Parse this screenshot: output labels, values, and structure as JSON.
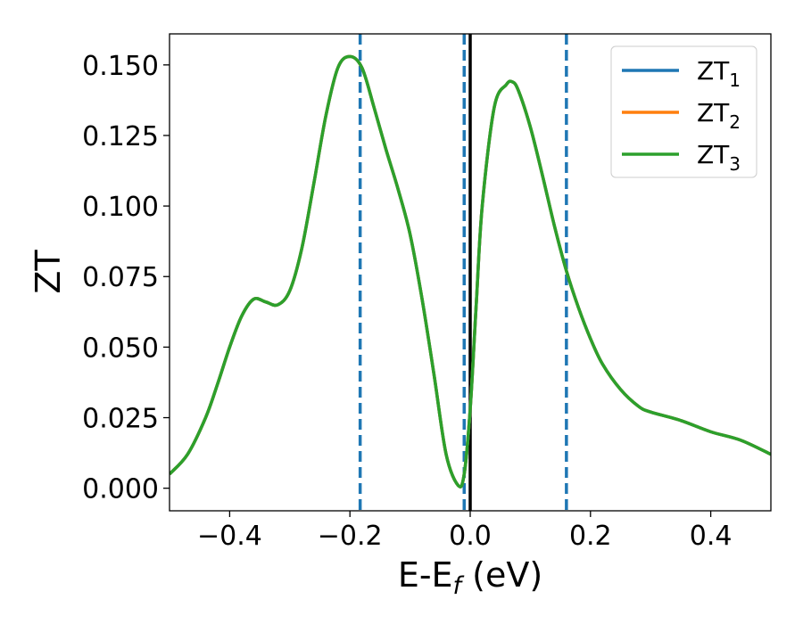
{
  "chart_data": {
    "type": "line",
    "xlabel": "E-E",
    "xlabel_sub": "f",
    "xlabel_unit": " (eV)",
    "ylabel": "ZT",
    "xlim": [
      -0.5,
      0.5
    ],
    "ylim": [
      -0.008,
      0.161
    ],
    "grid": false,
    "legend_position": "top-right",
    "xticks": [
      -0.4,
      -0.2,
      0.0,
      0.2,
      0.4
    ],
    "xtick_labels": [
      "−0.4",
      "−0.2",
      "0.0",
      "0.2",
      "0.4"
    ],
    "yticks": [
      0.0,
      0.025,
      0.05,
      0.075,
      0.1,
      0.125,
      0.15
    ],
    "ytick_labels": [
      "0.000",
      "0.025",
      "0.050",
      "0.075",
      "0.100",
      "0.125",
      "0.150"
    ],
    "series": [
      {
        "name": "ZT",
        "sub": "1",
        "color": "#1f77b4"
      },
      {
        "name": "ZT",
        "sub": "2",
        "color": "#ff7f0e"
      },
      {
        "name": "ZT",
        "sub": "3",
        "color": "#2ca02c"
      }
    ],
    "curve": {
      "color": "#2ca02c",
      "x": [
        -0.5,
        -0.47,
        -0.44,
        -0.42,
        -0.4,
        -0.38,
        -0.36,
        -0.34,
        -0.32,
        -0.3,
        -0.28,
        -0.26,
        -0.24,
        -0.22,
        -0.2,
        -0.18,
        -0.16,
        -0.14,
        -0.12,
        -0.1,
        -0.08,
        -0.06,
        -0.04,
        -0.02,
        -0.01,
        0.0,
        0.01,
        0.02,
        0.04,
        0.06,
        0.07,
        0.08,
        0.1,
        0.12,
        0.14,
        0.16,
        0.18,
        0.2,
        0.22,
        0.25,
        0.28,
        0.3,
        0.35,
        0.4,
        0.45,
        0.5
      ],
      "y": [
        0.005,
        0.012,
        0.025,
        0.037,
        0.05,
        0.061,
        0.067,
        0.066,
        0.065,
        0.07,
        0.085,
        0.108,
        0.132,
        0.149,
        0.153,
        0.149,
        0.135,
        0.12,
        0.106,
        0.09,
        0.067,
        0.04,
        0.012,
        0.001,
        0.005,
        0.028,
        0.065,
        0.1,
        0.135,
        0.143,
        0.144,
        0.141,
        0.128,
        0.111,
        0.093,
        0.077,
        0.064,
        0.053,
        0.044,
        0.035,
        0.029,
        0.027,
        0.024,
        0.02,
        0.017,
        0.012
      ]
    },
    "vlines": [
      {
        "x": -0.183,
        "style": "dashed",
        "color": "#1f77b4"
      },
      {
        "x": -0.01,
        "style": "dashed",
        "color": "#1f77b4"
      },
      {
        "x": 0.0,
        "style": "solid",
        "color": "#000000"
      },
      {
        "x": 0.16,
        "style": "dashed",
        "color": "#1f77b4"
      }
    ]
  }
}
